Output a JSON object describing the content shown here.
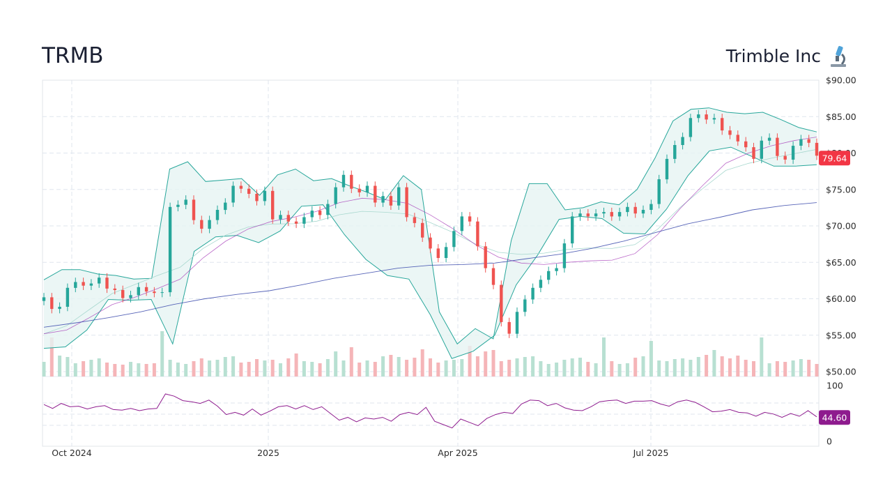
{
  "header": {
    "ticker": "TRMB",
    "company_name": "Trimble Inc",
    "company_icon": "microscope-icon"
  },
  "chart_data": [
    {
      "type": "candlestick",
      "title": "",
      "price_axis": {
        "range": [
          50,
          90
        ],
        "ticks": [
          "$90.00",
          "$85.00",
          "$80.00",
          "$75.00",
          "$70.00",
          "$65.00",
          "$60.00",
          "$55.00",
          "$50.00"
        ],
        "side": "right"
      },
      "time_axis": {
        "labels": [
          "Oct 2024",
          "2025",
          "Apr 2025",
          "Jul 2025"
        ]
      },
      "grid": true,
      "colors": {
        "up": "#26a69a",
        "down": "#ef5350",
        "bollinger": "#26a69a",
        "bollinger_fill": "#e6f4f2",
        "sma_short": "#9c27b0",
        "sma_long": "#3949ab"
      },
      "last_price": "79.64",
      "series": [
        {
          "name": "",
          "kind": "close",
          "values": [
            60.2,
            58.6,
            58.9,
            61.5,
            62.3,
            61.8,
            62.1,
            62.9,
            61.4,
            61.2,
            60.1,
            60.5,
            61.6,
            61.0,
            60.8,
            60.9,
            72.6,
            72.9,
            73.6,
            70.8,
            69.6,
            70.8,
            72.2,
            73.2,
            75.5,
            75.1,
            74.4,
            73.4,
            74.8,
            70.9,
            71.5,
            70.6,
            70.3,
            71.2,
            72.1,
            71.5,
            73.0,
            75.3,
            77.0,
            75.1,
            74.6,
            75.5,
            73.2,
            74.1,
            72.8,
            75.3,
            71.2,
            70.4,
            68.4,
            66.9,
            65.6,
            67.1,
            69.3,
            71.3,
            70.6,
            67.2,
            64.2,
            61.9,
            56.8,
            55.2,
            58.2,
            59.9,
            61.5,
            62.6,
            63.8,
            64.2,
            67.6,
            71.3,
            71.7,
            71.3,
            71.7,
            71.9,
            71.3,
            71.9,
            72.6,
            71.7,
            72.2,
            73.0,
            76.4,
            79.2,
            81.1,
            82.2,
            84.8,
            85.3,
            84.6,
            84.8,
            83.1,
            82.5,
            81.6,
            80.8,
            79.2,
            81.7,
            82.1,
            79.6,
            79.1,
            81.0,
            81.9,
            81.4,
            79.64
          ]
        },
        {
          "name": "",
          "kind": "bollinger-upper",
          "values": [
            62.6,
            64.0,
            64.0,
            63.4,
            63.2,
            62.7,
            62.8,
            77.8,
            78.8,
            76.1,
            76.3,
            76.5,
            74.2,
            77.0,
            77.8,
            76.2,
            76.5,
            75.5,
            74.6,
            73.6,
            76.9,
            75.0,
            58.2,
            53.8,
            55.9,
            54.5,
            68.0,
            75.8,
            75.8,
            72.2,
            72.5,
            73.3,
            72.9,
            75.0,
            79.3,
            84.4,
            86.0,
            86.2,
            85.6,
            85.4,
            85.6,
            84.6,
            83.5,
            82.9
          ]
        },
        {
          "name": "",
          "kind": "bollinger-lower",
          "values": [
            53.2,
            53.4,
            55.7,
            59.9,
            59.8,
            59.9,
            53.8,
            66.5,
            68.5,
            68.7,
            67.7,
            69.3,
            72.7,
            72.9,
            68.8,
            65.4,
            63.2,
            62.7,
            57.8,
            51.8,
            52.8,
            55.0,
            61.9,
            66.0,
            70.9,
            71.3,
            71.0,
            69.0,
            68.9,
            72.3,
            76.9,
            80.3,
            80.8,
            79.5,
            78.2,
            78.2,
            78.4
          ]
        },
        {
          "name": "",
          "kind": "sma-short",
          "values": [
            55.2,
            55.7,
            57.4,
            59.2,
            60.2,
            61.4,
            62.7,
            65.6,
            67.9,
            69.6,
            70.6,
            71.2,
            72.0,
            73.2,
            73.8,
            73.6,
            73.1,
            71.5,
            69.6,
            67.4,
            65.7,
            64.9,
            64.7,
            65.0,
            65.2,
            65.3,
            66.2,
            68.8,
            72.4,
            75.6,
            78.6,
            80.0,
            81.0,
            81.7,
            82.2
          ]
        },
        {
          "name": "",
          "kind": "sma-long",
          "values": [
            56.1,
            56.7,
            57.4,
            58.2,
            59.2,
            60.0,
            60.6,
            61.1,
            61.9,
            62.8,
            63.5,
            64.2,
            64.6,
            64.7,
            64.9,
            65.5,
            66.1,
            66.9,
            67.9,
            69.1,
            70.3,
            71.2,
            72.2,
            72.8,
            73.2
          ]
        }
      ]
    },
    {
      "type": "bar",
      "title": "",
      "series": [
        {
          "name": "",
          "kind": "volume",
          "values": [
            2.1,
            5.6,
            3.0,
            2.8,
            1.9,
            2.2,
            2.4,
            2.6,
            2.0,
            1.8,
            1.7,
            2.1,
            1.9,
            1.8,
            1.9,
            6.5,
            2.4,
            2.0,
            1.8,
            2.2,
            2.6,
            2.3,
            2.4,
            2.8,
            2.9,
            2.0,
            2.1,
            2.5,
            2.3,
            2.4,
            1.9,
            2.6,
            3.3,
            2.2,
            2.1,
            1.9,
            2.5,
            3.6,
            2.3,
            4.2,
            2.0,
            2.3,
            2.1,
            2.9,
            3.1,
            2.8,
            2.4,
            2.7,
            3.9,
            2.6,
            2.0,
            2.3,
            2.4,
            2.5,
            4.4,
            2.9,
            3.6,
            3.8,
            2.2,
            2.4,
            2.6,
            2.8,
            2.9,
            2.2,
            1.8,
            2.0,
            2.4,
            2.6,
            2.7,
            2.1,
            1.9,
            5.6,
            2.2,
            1.8,
            1.9,
            2.7,
            2.9,
            5.1,
            2.3,
            2.2,
            2.5,
            2.6,
            2.4,
            2.8,
            3.1,
            3.8,
            2.9,
            2.6,
            3.0,
            2.4,
            2.2,
            5.6,
            1.9,
            2.2,
            2.1,
            2.3,
            2.5,
            2.4,
            1.8
          ]
        }
      ]
    },
    {
      "type": "line",
      "title": "",
      "y_axis": {
        "range": [
          0,
          100
        ],
        "ticks": [
          "100",
          "0"
        ]
      },
      "last_value": "44.60",
      "series": [
        {
          "name": "",
          "kind": "oscillator",
          "values": [
            66,
            59,
            68,
            62,
            63,
            58,
            62,
            64,
            57,
            56,
            59,
            55,
            58,
            59,
            85,
            81,
            73,
            71,
            68,
            74,
            63,
            48,
            52,
            47,
            58,
            47,
            54,
            62,
            64,
            58,
            64,
            57,
            62,
            50,
            38,
            43,
            35,
            42,
            40,
            43,
            36,
            48,
            52,
            48,
            61,
            36,
            30,
            24,
            40,
            34,
            28,
            41,
            48,
            52,
            50,
            67,
            74,
            73,
            64,
            68,
            60,
            56,
            55,
            62,
            71,
            73,
            74,
            68,
            72,
            72,
            73,
            67,
            63,
            71,
            74,
            70,
            62,
            53,
            54,
            57,
            52,
            51,
            45,
            52,
            49,
            43,
            50,
            45,
            55,
            44
          ]
        }
      ]
    }
  ]
}
